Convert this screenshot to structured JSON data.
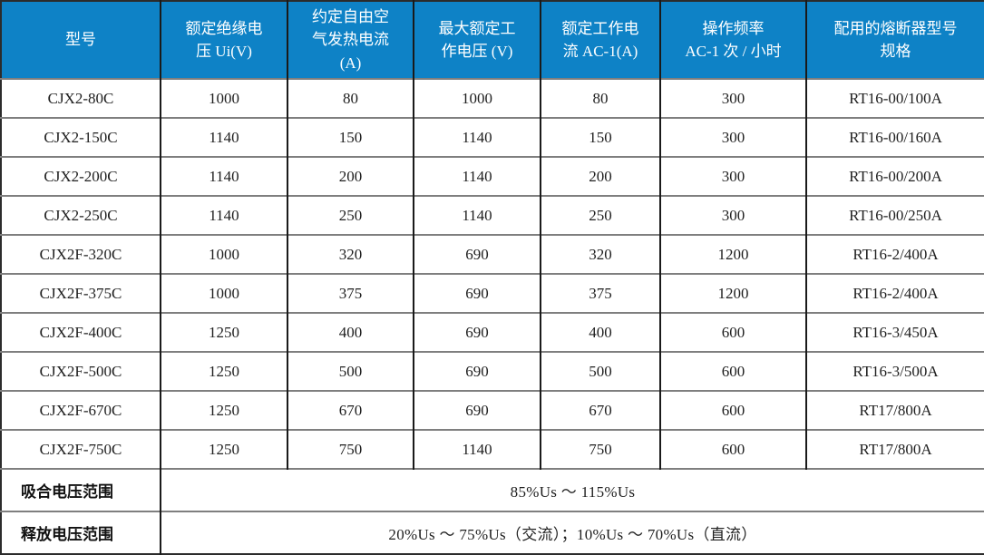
{
  "colors": {
    "header_bg": "#0E82C6",
    "header_text": "#FFFFFF",
    "body_text": "#1F1F1F",
    "h_border": "#7F7F7F",
    "v_border": "#1A1A1A"
  },
  "table": {
    "column_keys": [
      "model",
      "rated-insulation-voltage",
      "conventional-free-air-thermal-current",
      "max-rated-operating-voltage",
      "rated-operating-current-ac1",
      "operating-frequency",
      "fuse-type-spec"
    ],
    "header": [
      "型号",
      "额定绝缘电\n压 Ui(V)",
      "约定自由空\n气发热电流\n(A)",
      "最大额定工\n作电压 (V)",
      "额定工作电\n流 AC-1(A)",
      "操作频率\nAC-1 次 / 小时",
      "配用的熔断器型号\n规格"
    ],
    "rows": [
      [
        "CJX2-80C",
        "1000",
        "80",
        "1000",
        "80",
        "300",
        "RT16-00/100A"
      ],
      [
        "CJX2-150C",
        "1140",
        "150",
        "1140",
        "150",
        "300",
        "RT16-00/160A"
      ],
      [
        "CJX2-200C",
        "1140",
        "200",
        "1140",
        "200",
        "300",
        "RT16-00/200A"
      ],
      [
        "CJX2-250C",
        "1140",
        "250",
        "1140",
        "250",
        "300",
        "RT16-00/250A"
      ],
      [
        "CJX2F-320C",
        "1000",
        "320",
        "690",
        "320",
        "1200",
        "RT16-2/400A"
      ],
      [
        "CJX2F-375C",
        "1000",
        "375",
        "690",
        "375",
        "1200",
        "RT16-2/400A"
      ],
      [
        "CJX2F-400C",
        "1250",
        "400",
        "690",
        "400",
        "600",
        "RT16-3/450A"
      ],
      [
        "CJX2F-500C",
        "1250",
        "500",
        "690",
        "500",
        "600",
        "RT16-3/500A"
      ],
      [
        "CJX2F-670C",
        "1250",
        "670",
        "690",
        "670",
        "600",
        "RT17/800A"
      ],
      [
        "CJX2F-750C",
        "1250",
        "750",
        "1140",
        "750",
        "600",
        "RT17/800A"
      ]
    ],
    "footer": [
      {
        "label": "吸合电压范围",
        "value": "85%Us ～ 115%Us"
      },
      {
        "label": "释放电压范围",
        "value": "20%Us ～ 75%Us（交流）；10%Us ～ 70%Us（直流）"
      }
    ]
  }
}
